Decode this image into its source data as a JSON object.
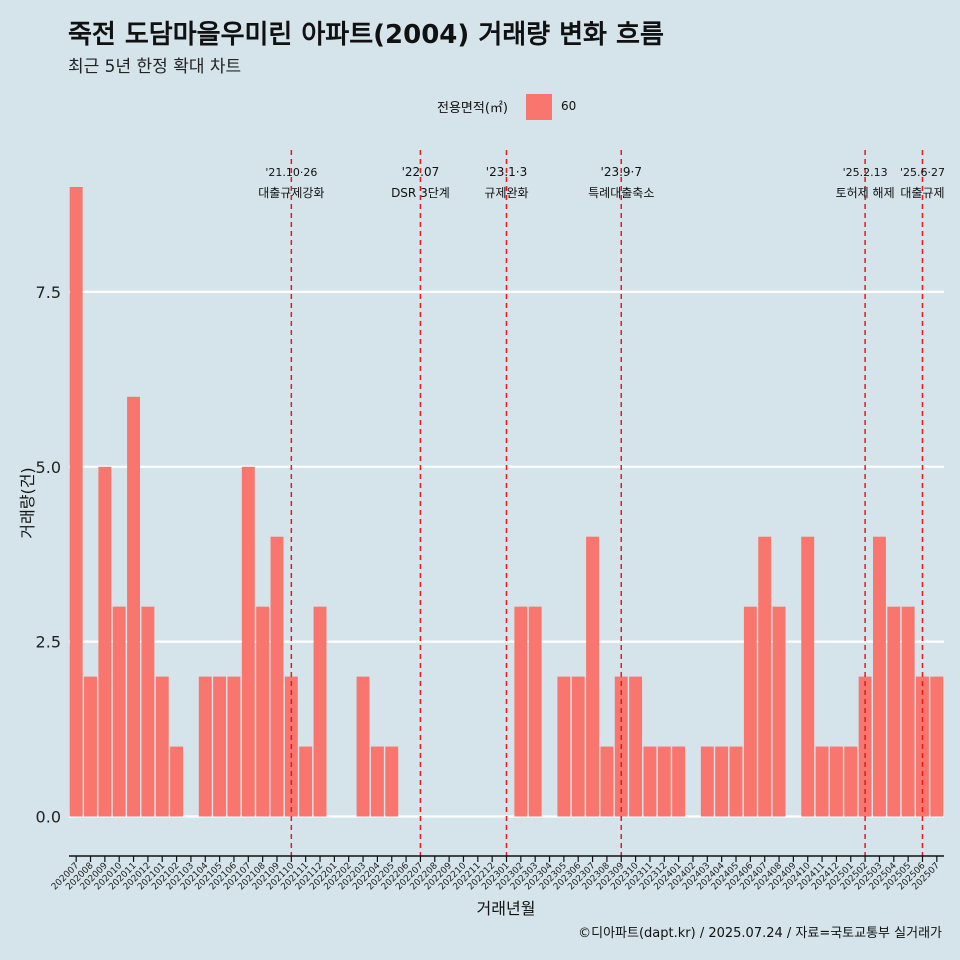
{
  "chart_data": {
    "type": "bar",
    "title": "죽전 도담마을우미린 아파트(2004) 거래량 변화 흐름",
    "subtitle": "최근 5년 한정 확대 차트",
    "xlabel": "거래년월",
    "ylabel": "거래량(건)",
    "ylim": [
      -0.45,
      9.6
    ],
    "yticks": [
      0.0,
      2.5,
      5.0,
      7.5
    ],
    "ytick_labels": [
      "0.0",
      "2.5",
      "5.0",
      "7.5"
    ],
    "grid": true,
    "legend": {
      "title": "전용면적(㎡)",
      "position": "top",
      "entries": [
        {
          "label": "60",
          "color": "#f8766d"
        }
      ]
    },
    "categories": [
      "202007",
      "202008",
      "202009",
      "202010",
      "202011",
      "202012",
      "202101",
      "202102",
      "202103",
      "202104",
      "202105",
      "202106",
      "202107",
      "202108",
      "202109",
      "202110",
      "202111",
      "202112",
      "202201",
      "202202",
      "202203",
      "202204",
      "202205",
      "202206",
      "202207",
      "202208",
      "202209",
      "202210",
      "202211",
      "202212",
      "202301",
      "202302",
      "202303",
      "202304",
      "202305",
      "202306",
      "202307",
      "202308",
      "202309",
      "202310",
      "202311",
      "202312",
      "202401",
      "202402",
      "202403",
      "202404",
      "202405",
      "202406",
      "202407",
      "202408",
      "202409",
      "202410",
      "202411",
      "202412",
      "202501",
      "202502",
      "202503",
      "202504",
      "202505",
      "202506",
      "202507"
    ],
    "series": [
      {
        "name": "60",
        "color": "#f8766d",
        "values": [
          9,
          2,
          5,
          3,
          6,
          3,
          2,
          1,
          0,
          2,
          2,
          2,
          5,
          3,
          4,
          2,
          1,
          3,
          0,
          0,
          2,
          1,
          1,
          0,
          0,
          0,
          0,
          0,
          0,
          0,
          0,
          3,
          3,
          0,
          2,
          2,
          4,
          1,
          2,
          2,
          1,
          1,
          1,
          0,
          1,
          1,
          1,
          3,
          4,
          3,
          0,
          4,
          1,
          1,
          1,
          2,
          4,
          3,
          3,
          2,
          2
        ]
      }
    ],
    "annotations": [
      {
        "x": "202110",
        "date": "'21.10·26",
        "label": "대출규제강화"
      },
      {
        "x": "202207",
        "date": "'22.07",
        "label": "DSR 3단계"
      },
      {
        "x": "202301",
        "date": "'23.1·3",
        "label": "규제완화"
      },
      {
        "x": "202309",
        "date": "'23.9·7",
        "label": "특례대출축소"
      },
      {
        "x": "202502",
        "date": "'25.2.13",
        "label": "토허제 해제"
      },
      {
        "x": "202506",
        "date": "'25.6·27",
        "label": "대출규제"
      }
    ],
    "annotation_color": "#e41a1c"
  },
  "caption": "©디아파트(dapt.kr) / 2025.07.24 / 자료=국토교통부 실거래가"
}
